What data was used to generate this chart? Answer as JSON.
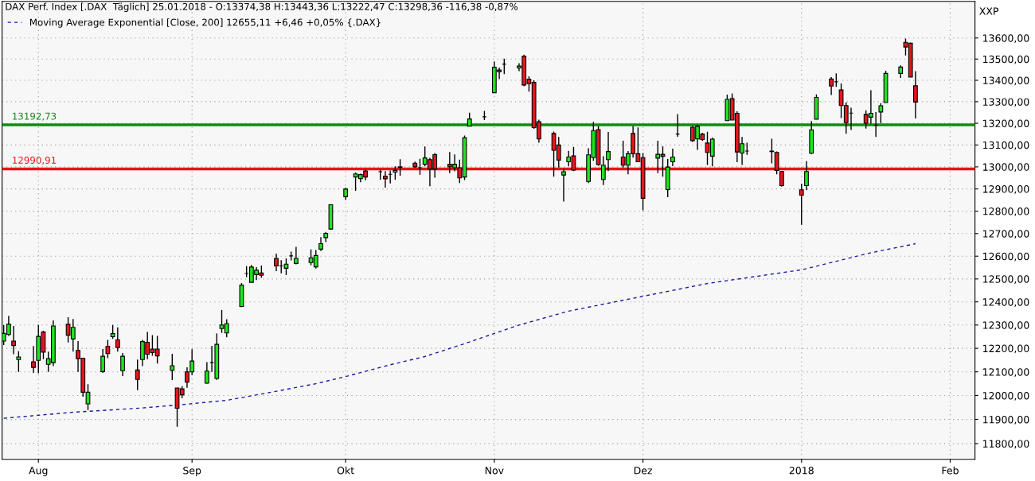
{
  "chart_data": {
    "type": "candlestick",
    "title": "DAX Perf. Index [.DAX  Täglich] 25.01.2018 - O:13374,38 H:13443,36 L:13222,47 C:13298,36 -116,38 -0,87%",
    "x": [
      "2017-07-25",
      "2017-07-26",
      "2017-07-27",
      "2017-07-28",
      "2017-07-31",
      "2017-08-01",
      "2017-08-02",
      "2017-08-03",
      "2017-08-04",
      "2017-08-07",
      "2017-08-08",
      "2017-08-09",
      "2017-08-10",
      "2017-08-11",
      "2017-08-14",
      "2017-08-15",
      "2017-08-16",
      "2017-08-17",
      "2017-08-18",
      "2017-08-21",
      "2017-08-22",
      "2017-08-23",
      "2017-08-24",
      "2017-08-25",
      "2017-08-28",
      "2017-08-29",
      "2017-08-30",
      "2017-08-31",
      "2017-09-01",
      "2017-09-04",
      "2017-09-05",
      "2017-09-06",
      "2017-09-07",
      "2017-09-08",
      "2017-09-11",
      "2017-09-12",
      "2017-09-13",
      "2017-09-14",
      "2017-09-15",
      "2017-09-18",
      "2017-09-19",
      "2017-09-20",
      "2017-09-21",
      "2017-09-22",
      "2017-09-25",
      "2017-09-26",
      "2017-09-27",
      "2017-09-28",
      "2017-09-29",
      "2017-10-02",
      "2017-10-04",
      "2017-10-05",
      "2017-10-06",
      "2017-10-09",
      "2017-10-10",
      "2017-10-11",
      "2017-10-12",
      "2017-10-13",
      "2017-10-16",
      "2017-10-17",
      "2017-10-18",
      "2017-10-19",
      "2017-10-20",
      "2017-10-23",
      "2017-10-24",
      "2017-10-25",
      "2017-10-26",
      "2017-10-27",
      "2017-10-30",
      "2017-11-01",
      "2017-11-02",
      "2017-11-03",
      "2017-11-06",
      "2017-11-07",
      "2017-11-08",
      "2017-11-09",
      "2017-11-10",
      "2017-11-13",
      "2017-11-14",
      "2017-11-15",
      "2017-11-16",
      "2017-11-17",
      "2017-11-20",
      "2017-11-21",
      "2017-11-22",
      "2017-11-23",
      "2017-11-24",
      "2017-11-27",
      "2017-11-28",
      "2017-11-29",
      "2017-11-30",
      "2017-12-01",
      "2017-12-04",
      "2017-12-05",
      "2017-12-06",
      "2017-12-07",
      "2017-12-08",
      "2017-12-11",
      "2017-12-12",
      "2017-12-13",
      "2017-12-14",
      "2017-12-15",
      "2017-12-18",
      "2017-12-19",
      "2017-12-20",
      "2017-12-21",
      "2017-12-22",
      "2017-12-27",
      "2017-12-28",
      "2017-12-29",
      "2018-01-02",
      "2018-01-03",
      "2018-01-04",
      "2018-01-05",
      "2018-01-08",
      "2018-01-09",
      "2018-01-10",
      "2018-01-11",
      "2018-01-12",
      "2018-01-15",
      "2018-01-16",
      "2018-01-17",
      "2018-01-18",
      "2018-01-19",
      "2018-01-22",
      "2018-01-23",
      "2018-01-24",
      "2018-01-25"
    ],
    "ohlc": [
      [
        12231,
        12300,
        12214,
        12264
      ],
      [
        12259,
        12340,
        12253,
        12303
      ],
      [
        12231,
        12296,
        12175,
        12212
      ],
      [
        12152,
        12188,
        12100,
        12163
      ],
      [
        12143,
        12210,
        12096,
        12119
      ],
      [
        12149,
        12301,
        12094,
        12251
      ],
      [
        12270,
        12275,
        12154,
        12184
      ],
      [
        12132,
        12186,
        12100,
        12156
      ],
      [
        12139,
        12320,
        12124,
        12296
      ],
      [
        12303,
        12334,
        12225,
        12256
      ],
      [
        12240,
        12326,
        12186,
        12290
      ],
      [
        12191,
        12231,
        12100,
        12156
      ],
      [
        12158,
        12160,
        11995,
        12014
      ],
      [
        11965,
        12048,
        11939,
        12014
      ],
      [
        12101,
        12197,
        12096,
        12166
      ],
      [
        12208,
        12236,
        12158,
        12178
      ],
      [
        12250,
        12300,
        12240,
        12263
      ],
      [
        12236,
        12290,
        12186,
        12203
      ],
      [
        12105,
        12180,
        12082,
        12166
      ],
      [
        12108,
        12152,
        12023,
        12068
      ],
      [
        12152,
        12236,
        12124,
        12229
      ],
      [
        12226,
        12270,
        12154,
        12175
      ],
      [
        12197,
        12257,
        12168,
        12182
      ],
      [
        12197,
        12253,
        12135,
        12168
      ],
      [
        12107,
        12177,
        12065,
        12126
      ],
      [
        12032,
        12033,
        11870,
        11947
      ],
      [
        12028,
        12039,
        11989,
        12003
      ],
      [
        12100,
        12119,
        12033,
        12056
      ],
      [
        12100,
        12196,
        12086,
        12146
      ],
      [
        12052,
        12141,
        12050,
        12103
      ],
      [
        12139,
        12211,
        12100,
        12139
      ],
      [
        12072,
        12264,
        12066,
        12217
      ],
      [
        12285,
        12365,
        12266,
        12300
      ],
      [
        12266,
        12325,
        12247,
        12306
      ],
      [
        12380,
        12482,
        12377,
        12473
      ],
      [
        12524,
        12556,
        12508,
        12524
      ],
      [
        12485,
        12561,
        12485,
        12552
      ],
      [
        12519,
        12552,
        12495,
        12538
      ],
      [
        12526,
        12559,
        12505,
        12516
      ],
      [
        12590,
        12611,
        12534,
        12557
      ],
      [
        12557,
        12582,
        12525,
        12557
      ],
      [
        12547,
        12590,
        12517,
        12565
      ],
      [
        12601,
        12620,
        12581,
        12601
      ],
      [
        12568,
        12641,
        12564,
        12590
      ],
      [
        12572,
        12630,
        12560,
        12593
      ],
      [
        12553,
        12627,
        12546,
        12603
      ],
      [
        12631,
        12684,
        12623,
        12655
      ],
      [
        12682,
        12707,
        12662,
        12701
      ],
      [
        12720,
        12830,
        12718,
        12829
      ],
      [
        12865,
        12906,
        12850,
        12899
      ],
      [
        12954,
        12974,
        12892,
        12968
      ],
      [
        12947,
        12969,
        12930,
        12965
      ],
      [
        12981,
        12988,
        12939,
        12954
      ],
      [
        12978,
        12987,
        12942,
        12978
      ],
      [
        12958,
        12981,
        12906,
        12946
      ],
      [
        12966,
        12983,
        12925,
        12966
      ],
      [
        12976,
        13002,
        12942,
        12984
      ],
      [
        12998,
        13035,
        12960,
        13000
      ],
      [
        13017,
        13024,
        12996,
        13000
      ],
      [
        12996,
        13037,
        12964,
        12996
      ],
      [
        13012,
        13093,
        13002,
        13041
      ],
      [
        13033,
        13041,
        12912,
        12990
      ],
      [
        13056,
        13063,
        12951,
        12990
      ],
      [
        13012,
        13068,
        12972,
        13000
      ],
      [
        12996,
        13057,
        12980,
        13012
      ],
      [
        12996,
        13033,
        12927,
        12950
      ],
      [
        12954,
        13143,
        12940,
        13133
      ],
      [
        13187,
        13249,
        13185,
        13220
      ],
      [
        13230,
        13257,
        13215,
        13230
      ],
      [
        13342,
        13488,
        13340,
        13461
      ],
      [
        13448,
        13460,
        13406,
        13440
      ],
      [
        13476,
        13502,
        13429,
        13476
      ],
      [
        13458,
        13480,
        13443,
        13467
      ],
      [
        13513,
        13521,
        13372,
        13378
      ],
      [
        13405,
        13419,
        13347,
        13384
      ],
      [
        13390,
        13400,
        13174,
        13180
      ],
      [
        13207,
        13217,
        13110,
        13128
      ],
      [
        13153,
        13162,
        12955,
        13076
      ],
      [
        13100,
        13137,
        12997,
        13031
      ],
      [
        12963,
        12991,
        12843,
        12978
      ],
      [
        13023,
        13073,
        13003,
        13045
      ],
      [
        13050,
        13091,
        12981,
        12985
      ],
      [
        12934,
        13085,
        12927,
        13055
      ],
      [
        13042,
        13207,
        13028,
        13166
      ],
      [
        13171,
        13187,
        13005,
        13011
      ],
      [
        12943,
        13049,
        12918,
        13008
      ],
      [
        13033,
        13160,
        12981,
        13070
      ],
      [
        13045,
        13120,
        12997,
        13008
      ],
      [
        13008,
        13072,
        12966,
        13060
      ],
      [
        13153,
        13187,
        13042,
        13060
      ],
      [
        13060,
        13181,
        13023,
        13023
      ],
      [
        13042,
        13063,
        12804,
        12858
      ],
      [
        13040,
        13120,
        12972,
        13057
      ],
      [
        13057,
        13094,
        12955,
        13048
      ],
      [
        12897,
        13036,
        12863,
        12999
      ],
      [
        13023,
        13083,
        13003,
        13045
      ],
      [
        13150,
        13242,
        13138,
        13150
      ],
      [
        13182,
        13187,
        13114,
        13120
      ],
      [
        13128,
        13193,
        13078,
        13186
      ],
      [
        13150,
        13156,
        13119,
        13125
      ],
      [
        13109,
        13161,
        13009,
        13066
      ],
      [
        13049,
        13134,
        13002,
        13127
      ],
      [
        13212,
        13333,
        13212,
        13311
      ],
      [
        13314,
        13339,
        13215,
        13215
      ],
      [
        13246,
        13255,
        13021,
        13068
      ],
      [
        13063,
        13137,
        13009,
        13106
      ],
      [
        13072,
        13110,
        13055,
        13072
      ],
      [
        13072,
        13129,
        13016,
        13070
      ],
      [
        13066,
        13070,
        12966,
        12984
      ],
      [
        12979,
        12982,
        12910,
        12915
      ],
      [
        12896,
        12924,
        12739,
        12872
      ],
      [
        12915,
        13026,
        12894,
        12979
      ],
      [
        13062,
        13210,
        13059,
        13170
      ],
      [
        13219,
        13334,
        13219,
        13320
      ],
      [
        13406,
        13415,
        13331,
        13373
      ],
      [
        13393,
        13433,
        13369,
        13393
      ],
      [
        13355,
        13385,
        13224,
        13282
      ],
      [
        13282,
        13297,
        13152,
        13203
      ],
      [
        13247,
        13272,
        13169,
        13247
      ],
      [
        13241,
        13260,
        13175,
        13200
      ],
      [
        13228,
        13353,
        13197,
        13246
      ],
      [
        13191,
        13252,
        13137,
        13191
      ],
      [
        13252,
        13293,
        13200,
        13281
      ],
      [
        13296,
        13445,
        13296,
        13432
      ],
      [
        13432,
        13470,
        13411,
        13462
      ],
      [
        13579,
        13597,
        13517,
        13557
      ],
      [
        13575,
        13577,
        13415,
        13415
      ],
      [
        13374.38,
        13443.36,
        13222.47,
        13298.36
      ]
    ],
    "colors": [
      "#1ee61e",
      "#1ee61e",
      "#e8141c",
      "#1ee61e",
      "#e8141c",
      "#1ee61e",
      "#e8141c",
      "#1ee61e",
      "#1ee61e",
      "#e8141c",
      "#1ee61e",
      "#e8141c",
      "#e8141c",
      "#1ee61e",
      "#1ee61e",
      "#e8141c",
      "#1ee61e",
      "#e8141c",
      "#1ee61e",
      "#e8141c",
      "#1ee61e",
      "#e8141c",
      "#e8141c",
      "#e8141c",
      "#1ee61e",
      "#e8141c",
      "#e8141c",
      "#e8141c",
      "#1ee61e",
      "#1ee61e",
      "#000000",
      "#1ee61e",
      "#1ee61e",
      "#1ee61e",
      "#1ee61e",
      "#000000",
      "#1ee61e",
      "#1ee61e",
      "#e8141c",
      "#e8141c",
      "#000000",
      "#1ee61e",
      "#000000",
      "#1ee61e",
      "#1ee61e",
      "#1ee61e",
      "#1ee61e",
      "#1ee61e",
      "#1ee61e",
      "#1ee61e",
      "#1ee61e",
      "#1ee61e",
      "#e8141c",
      "#000000",
      "#e8141c",
      "#000000",
      "#1ee61e",
      "#1ee61e",
      "#e8141c",
      "#000000",
      "#1ee61e",
      "#e8141c",
      "#e8141c",
      "#e8141c",
      "#1ee61e",
      "#e8141c",
      "#1ee61e",
      "#1ee61e",
      "#000000",
      "#1ee61e",
      "#e8141c",
      "#000000",
      "#1ee61e",
      "#e8141c",
      "#e8141c",
      "#e8141c",
      "#e8141c",
      "#e8141c",
      "#e8141c",
      "#1ee61e",
      "#1ee61e",
      "#e8141c",
      "#1ee61e",
      "#1ee61e",
      "#e8141c",
      "#1ee61e",
      "#1ee61e",
      "#e8141c",
      "#1ee61e",
      "#e8141c",
      "#e8141c",
      "#e8141c",
      "#1ee61e",
      "#e8141c",
      "#1ee61e",
      "#1ee61e",
      "#000000",
      "#e8141c",
      "#1ee61e",
      "#e8141c",
      "#e8141c",
      "#1ee61e",
      "#1ee61e",
      "#e8141c",
      "#e8141c",
      "#1ee61e",
      "#000000",
      "#e8141c",
      "#e8141c",
      "#e8141c",
      "#e8141c",
      "#1ee61e",
      "#1ee61e",
      "#1ee61e",
      "#e8141c",
      "#000000",
      "#e8141c",
      "#e8141c",
      "#000000",
      "#e8141c",
      "#1ee61e",
      "#000000",
      "#1ee61e",
      "#1ee61e",
      "#1ee61e",
      "#e8141c",
      "#e8141c",
      "#e8141c"
    ],
    "series": [
      {
        "name": "Moving Average Exponential [Close, 200] 12655,11 +6,46 +0,05% {.DAX}",
        "type": "line",
        "color": "#1a1aa0",
        "line_style": "dashed",
        "x": [
          "2017-07-25",
          "2017-08-08",
          "2017-08-22",
          "2017-08-30",
          "2017-09-08",
          "2017-09-19",
          "2017-09-26",
          "2017-10-02",
          "2017-10-11",
          "2017-10-18",
          "2017-10-26",
          "2017-11-06",
          "2017-11-16",
          "2017-11-30",
          "2017-12-14",
          "2018-01-02",
          "2018-01-16",
          "2018-01-25"
        ],
        "values": [
          11905,
          11930,
          11948,
          11962,
          11980,
          12022,
          12050,
          12080,
          12130,
          12165,
          12220,
          12300,
          12360,
          12420,
          12480,
          12540,
          12615,
          12655
        ]
      }
    ],
    "ref_lines": [
      {
        "axis": "y",
        "value": 13192.73,
        "label": "13192,73",
        "color": "#138a13"
      },
      {
        "axis": "y",
        "value": 12990.91,
        "label": "12990,91",
        "color": "#e8141c"
      }
    ],
    "annotations": [
      "XXP"
    ],
    "log": true,
    "ylim": [
      11735,
      13775
    ],
    "yticks": [
      {
        "value": 11800,
        "label": "11800,00"
      },
      {
        "value": 11900,
        "label": "11900,00"
      },
      {
        "value": 12000,
        "label": "12000,00"
      },
      {
        "value": 12100,
        "label": "12100,00"
      },
      {
        "value": 12200,
        "label": "12200,00"
      },
      {
        "value": 12300,
        "label": "12300,00"
      },
      {
        "value": 12400,
        "label": "12400,00"
      },
      {
        "value": 12500,
        "label": "12500,00"
      },
      {
        "value": 12600,
        "label": "12600,00"
      },
      {
        "value": 12700,
        "label": "12700,00"
      },
      {
        "value": 12800,
        "label": "12800,00"
      },
      {
        "value": 12900,
        "label": "12900,00"
      },
      {
        "value": 13000,
        "label": "13000,00"
      },
      {
        "value": 13100,
        "label": "13100,00"
      },
      {
        "value": 13200,
        "label": "13200,00"
      },
      {
        "value": 13300,
        "label": "13300,00"
      },
      {
        "value": 13400,
        "label": "13400,00"
      },
      {
        "value": 13500,
        "label": "13500,00"
      },
      {
        "value": 13600,
        "label": "13600,00"
      }
    ],
    "xlim": [
      "2017-07-24T16:00",
      "2018-02-06"
    ],
    "xticks": [
      {
        "value": "2017-08-01",
        "label": "Aug"
      },
      {
        "value": "2017-09-01",
        "label": "Sep"
      },
      {
        "value": "2017-10-02",
        "label": "Okt"
      },
      {
        "value": "2017-11-01",
        "label": "Nov"
      },
      {
        "value": "2017-12-01",
        "label": "Dez"
      },
      {
        "value": "2018-01-02",
        "label": "2018"
      },
      {
        "value": "2018-02-01",
        "label": "Feb"
      }
    ],
    "grid": true,
    "legend": "top left"
  }
}
